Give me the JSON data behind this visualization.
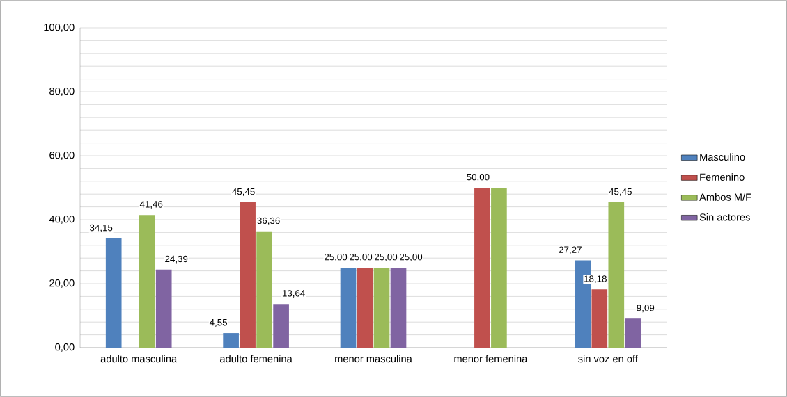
{
  "chart_data": {
    "type": "bar",
    "categories": [
      "adulto masculina",
      "adulto femenina",
      "menor masculina",
      "menor femenina",
      "sin voz en off"
    ],
    "series": [
      {
        "name": "Masculino",
        "color": "#4f81bd",
        "values": [
          34.15,
          4.55,
          25.0,
          0,
          27.27
        ],
        "value_labels": [
          "34,15",
          "4,55",
          "25,00",
          null,
          "27,27"
        ]
      },
      {
        "name": "Femenino",
        "color": "#c0504d",
        "values": [
          0,
          45.45,
          25.0,
          50.0,
          18.18
        ],
        "value_labels": [
          null,
          "45,45",
          "25,00",
          "50,00",
          "18,18"
        ]
      },
      {
        "name": "Ambos M/F",
        "color": "#9bbb59",
        "values": [
          41.46,
          36.36,
          25.0,
          50.0,
          45.45
        ],
        "value_labels": [
          "41,46",
          "36,36",
          "25,00",
          null,
          "45,45"
        ]
      },
      {
        "name": "Sin actores",
        "color": "#8064a2",
        "values": [
          24.39,
          13.64,
          25.0,
          0,
          9.09
        ],
        "value_labels": [
          "24,39",
          "13,64",
          "25,00",
          null,
          "9,09"
        ]
      }
    ],
    "ylim": [
      0,
      100
    ],
    "yticks": [
      {
        "value": 0,
        "label": "0,00"
      },
      {
        "value": 4,
        "label": null
      },
      {
        "value": 8,
        "label": null
      },
      {
        "value": 12,
        "label": null
      },
      {
        "value": 16,
        "label": null
      },
      {
        "value": 20,
        "label": "20,00"
      },
      {
        "value": 24,
        "label": null
      },
      {
        "value": 28,
        "label": null
      },
      {
        "value": 32,
        "label": null
      },
      {
        "value": 36,
        "label": null
      },
      {
        "value": 40,
        "label": "40,00"
      },
      {
        "value": 44,
        "label": null
      },
      {
        "value": 48,
        "label": null
      },
      {
        "value": 52,
        "label": null
      },
      {
        "value": 56,
        "label": null
      },
      {
        "value": 60,
        "label": "60,00"
      },
      {
        "value": 64,
        "label": null
      },
      {
        "value": 68,
        "label": null
      },
      {
        "value": 72,
        "label": null
      },
      {
        "value": 76,
        "label": null
      },
      {
        "value": 80,
        "label": "80,00"
      },
      {
        "value": 84,
        "label": null
      },
      {
        "value": 88,
        "label": null
      },
      {
        "value": 92,
        "label": null
      },
      {
        "value": 96,
        "label": null
      },
      {
        "value": 100,
        "label": "100,00"
      }
    ],
    "grid": "y",
    "legend": "right"
  }
}
